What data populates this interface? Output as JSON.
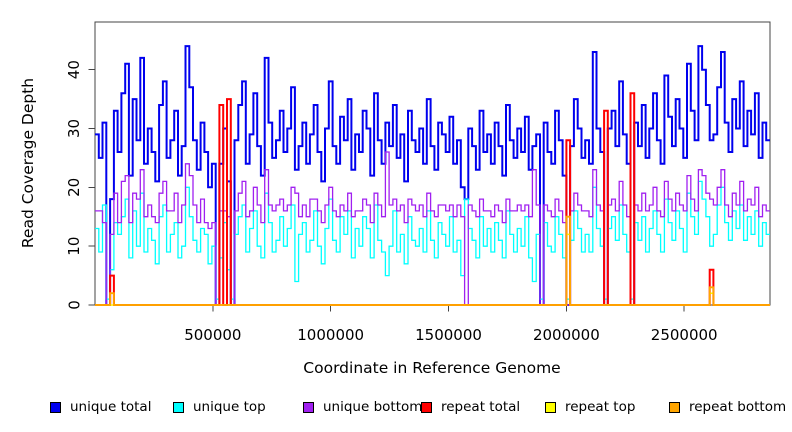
{
  "chart_data": {
    "type": "line",
    "title": "",
    "xlabel": "Coordinate in Reference Genome",
    "ylabel": "Read Coverage Depth",
    "xlim": [
      0,
      2864000
    ],
    "ylim": [
      0,
      48.1
    ],
    "x_step": 16000,
    "n": 179,
    "grid": false,
    "legend_position": "bottom",
    "axis_color": "#444444",
    "x_ticks": [
      {
        "v": 500000,
        "label": "500000"
      },
      {
        "v": 1000000,
        "label": "1000000"
      },
      {
        "v": 1500000,
        "label": "1500000"
      },
      {
        "v": 2000000,
        "label": "2000000"
      },
      {
        "v": 2500000,
        "label": "2500000"
      }
    ],
    "y_ticks": [
      {
        "v": 0,
        "label": "0"
      },
      {
        "v": 10,
        "label": "10"
      },
      {
        "v": 20,
        "label": "20"
      },
      {
        "v": 30,
        "label": "30"
      },
      {
        "v": 40,
        "label": "40"
      }
    ],
    "series": [
      {
        "name": "unique total",
        "color": "#0000EE",
        "lwd": 2,
        "values": [
          29,
          25,
          31,
          0,
          18,
          33,
          26,
          36,
          41,
          22,
          35,
          28,
          42,
          24,
          30,
          26,
          21,
          34,
          38,
          25,
          28,
          33,
          22,
          27,
          44,
          37,
          28,
          23,
          31,
          26,
          20,
          24,
          0,
          24,
          30,
          21,
          0,
          28,
          34,
          38,
          24,
          29,
          36,
          27,
          22,
          42,
          31,
          25,
          28,
          33,
          26,
          30,
          37,
          23,
          27,
          31,
          24,
          29,
          34,
          26,
          21,
          30,
          38,
          27,
          24,
          32,
          28,
          35,
          23,
          29,
          26,
          33,
          30,
          22,
          36,
          28,
          24,
          31,
          27,
          34,
          25,
          29,
          21,
          33,
          28,
          26,
          30,
          24,
          35,
          27,
          23,
          31,
          29,
          26,
          32,
          24,
          28,
          20,
          18,
          30,
          27,
          23,
          33,
          26,
          29,
          24,
          31,
          27,
          22,
          34,
          28,
          25,
          30,
          26,
          32,
          23,
          27,
          29,
          0,
          31,
          26,
          24,
          33,
          28,
          22,
          0,
          27,
          35,
          30,
          25,
          28,
          24,
          43,
          30,
          26,
          0,
          30,
          33,
          27,
          38,
          29,
          24,
          0,
          31,
          27,
          34,
          25,
          30,
          36,
          28,
          24,
          39,
          32,
          27,
          35,
          30,
          25,
          41,
          33,
          28,
          44,
          40,
          34,
          28,
          29,
          37,
          43,
          31,
          26,
          35,
          30,
          38,
          27,
          33,
          29,
          36,
          25,
          31,
          28
        ]
      },
      {
        "name": "unique top",
        "color": "#00FFFF",
        "lwd": 1.3,
        "values": [
          13,
          9,
          17,
          1,
          6,
          14,
          12,
          15,
          18,
          8,
          16,
          10,
          19,
          9,
          13,
          11,
          7,
          15,
          17,
          9,
          12,
          14,
          8,
          10,
          20,
          15,
          11,
          9,
          13,
          12,
          7,
          10,
          1,
          8,
          14,
          6,
          1,
          12,
          15,
          17,
          9,
          13,
          16,
          10,
          8,
          19,
          14,
          9,
          11,
          15,
          10,
          13,
          17,
          4,
          12,
          14,
          9,
          11,
          16,
          10,
          7,
          13,
          18,
          11,
          9,
          15,
          12,
          16,
          8,
          13,
          10,
          15,
          13,
          8,
          17,
          11,
          9,
          5,
          10,
          16,
          9,
          12,
          7,
          15,
          11,
          10,
          13,
          9,
          16,
          11,
          8,
          14,
          12,
          10,
          15,
          9,
          11,
          5,
          18,
          13,
          11,
          8,
          15,
          10,
          13,
          9,
          14,
          11,
          8,
          16,
          12,
          9,
          13,
          10,
          15,
          8,
          4,
          12,
          1,
          14,
          10,
          9,
          15,
          12,
          8,
          1,
          11,
          16,
          13,
          9,
          12,
          9,
          20,
          13,
          10,
          1,
          13,
          15,
          11,
          17,
          12,
          9,
          1,
          14,
          11,
          15,
          9,
          13,
          16,
          12,
          9,
          18,
          14,
          11,
          16,
          13,
          9,
          19,
          15,
          12,
          21,
          18,
          15,
          10,
          12,
          17,
          20,
          14,
          11,
          16,
          13,
          17,
          11,
          15,
          12,
          16,
          10,
          14,
          12
        ]
      },
      {
        "name": "unique bottom",
        "color": "#A020F0",
        "lwd": 1.3,
        "values": [
          16,
          16,
          14,
          0,
          12,
          19,
          14,
          21,
          22,
          14,
          19,
          18,
          23,
          15,
          17,
          15,
          14,
          19,
          21,
          16,
          16,
          19,
          14,
          17,
          24,
          22,
          17,
          14,
          18,
          14,
          13,
          14,
          0,
          16,
          16,
          15,
          0,
          16,
          19,
          21,
          15,
          16,
          20,
          17,
          14,
          23,
          17,
          16,
          17,
          18,
          16,
          17,
          20,
          19,
          15,
          17,
          15,
          18,
          18,
          16,
          14,
          17,
          20,
          16,
          15,
          17,
          16,
          19,
          15,
          16,
          16,
          18,
          17,
          14,
          19,
          17,
          15,
          26,
          17,
          18,
          16,
          17,
          14,
          18,
          17,
          16,
          17,
          15,
          19,
          16,
          15,
          17,
          17,
          16,
          17,
          15,
          17,
          15,
          0,
          17,
          16,
          15,
          18,
          16,
          16,
          15,
          17,
          16,
          14,
          18,
          16,
          16,
          17,
          16,
          17,
          15,
          23,
          17,
          0,
          17,
          16,
          15,
          18,
          16,
          14,
          0,
          16,
          19,
          17,
          16,
          16,
          15,
          23,
          17,
          16,
          0,
          17,
          18,
          16,
          21,
          17,
          15,
          0,
          17,
          16,
          19,
          16,
          17,
          20,
          16,
          15,
          21,
          18,
          16,
          19,
          17,
          16,
          22,
          18,
          16,
          23,
          22,
          19,
          18,
          17,
          20,
          23,
          17,
          15,
          19,
          17,
          21,
          16,
          18,
          17,
          20,
          15,
          17,
          16
        ]
      },
      {
        "name": "repeat total",
        "color": "#FF0000",
        "lwd": 2,
        "base": 0,
        "spikes": {
          "4": 5,
          "33": 34,
          "35": 35,
          "125": 28,
          "135": 33,
          "142": 36,
          "163": 6
        }
      },
      {
        "name": "repeat top",
        "color": "#FFFF00",
        "lwd": 1.5,
        "base": 0,
        "spikes": {
          "125": 12,
          "163": 2
        }
      },
      {
        "name": "repeat bottom",
        "color": "#FFA500",
        "lwd": 1.8,
        "base": 0,
        "spikes": {
          "4": 2,
          "125": 15,
          "163": 3
        }
      }
    ]
  }
}
